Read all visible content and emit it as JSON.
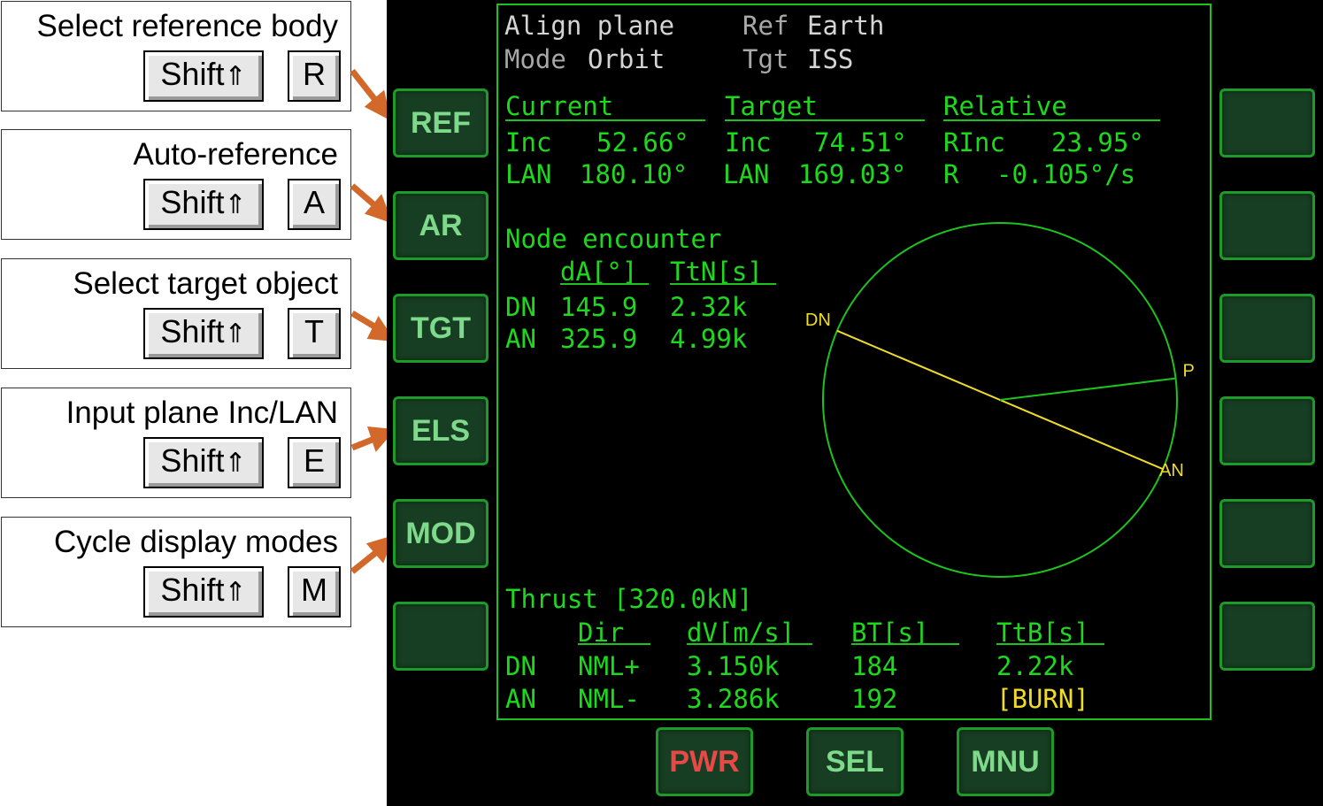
{
  "callouts": [
    {
      "label": "Select reference body",
      "key1": "Shift",
      "key2": "R"
    },
    {
      "label": "Auto-reference",
      "key1": "Shift",
      "key2": "A"
    },
    {
      "label": "Select target object",
      "key1": "Shift",
      "key2": "T"
    },
    {
      "label": "Input plane Inc/LAN",
      "key1": "Shift",
      "key2": "E"
    },
    {
      "label": "Cycle display modes",
      "key1": "Shift",
      "key2": "M"
    }
  ],
  "shift_arrow": "⇑",
  "left_buttons": [
    "REF",
    "AR",
    "TGT",
    "ELS",
    "MOD",
    ""
  ],
  "right_buttons": [
    "",
    "",
    "",
    "",
    "",
    ""
  ],
  "bottom_buttons": [
    "PWR",
    "SEL",
    "MNU"
  ],
  "colors": {
    "mfd_green": "#1ed81e",
    "highlight_yellow": "#f0dc28",
    "arrow_orange": "#d2692a",
    "pwr_red": "#e23a3a"
  },
  "header": {
    "title": "Align plane",
    "mode_label": "Mode",
    "mode_value": "Orbit",
    "ref_label": "Ref",
    "ref_value": "Earth",
    "tgt_label": "Tgt",
    "tgt_value": "ISS"
  },
  "elements": {
    "current": {
      "heading": "Current",
      "inc_label": "Inc",
      "inc_value": "52.66°",
      "lan_label": "LAN",
      "lan_value": "180.10°"
    },
    "target": {
      "heading": "Target",
      "inc_label": "Inc",
      "inc_value": "74.51°",
      "lan_label": "LAN",
      "lan_value": "169.03°"
    },
    "relative": {
      "heading": "Relative",
      "rinc_label": "RInc",
      "rinc_value": "23.95°",
      "r_label": "R",
      "r_value": "-0.105°/s"
    }
  },
  "node_encounter": {
    "title": "Node encounter",
    "col_da": "dA[°]",
    "col_ttn": "TtN[s]",
    "rows": [
      {
        "node": "DN",
        "da": "145.9",
        "ttn": "2.32k"
      },
      {
        "node": "AN",
        "da": "325.9",
        "ttn": "4.99k"
      }
    ]
  },
  "diagram": {
    "dn_label": "DN",
    "an_label": "AN",
    "p_label": "P",
    "node_angle_deg": 157,
    "p_angle_deg": 7
  },
  "thrust": {
    "title": "Thrust [320.0kN]",
    "headers": {
      "dir": "Dir",
      "dv": "dV[m/s]",
      "bt": "BT[s]",
      "ttb": "TtB[s]"
    },
    "rows": [
      {
        "node": "DN",
        "dir": "NML+",
        "dv": "3.150k",
        "bt": "184",
        "ttb": "2.22k"
      },
      {
        "node": "AN",
        "dir": "NML-",
        "dv": "3.286k",
        "bt": "192",
        "ttb": "[BURN]"
      }
    ]
  }
}
